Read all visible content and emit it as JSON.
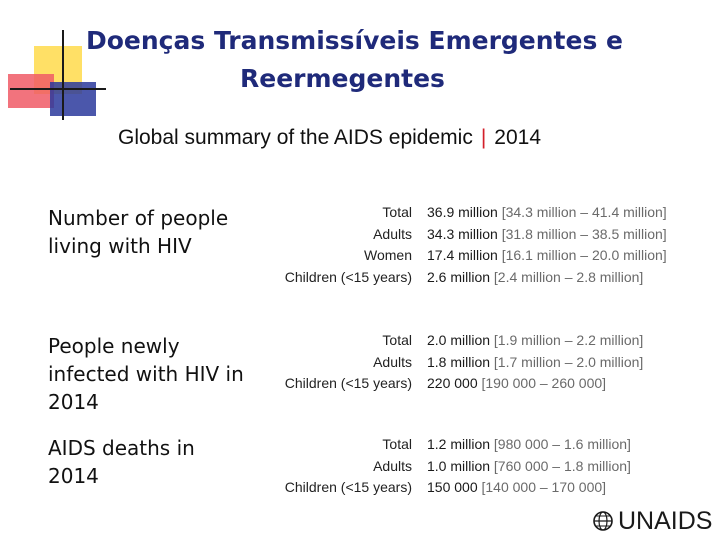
{
  "title": {
    "line1": "Doenças Transmissíveis Emergentes e",
    "line2": "Reermegentes"
  },
  "subtitle": {
    "text": "Global summary of the AIDS epidemic",
    "separator": "|",
    "year": "2014"
  },
  "sections": [
    {
      "label": "Number of people living with HIV",
      "rows": [
        {
          "category": "Total",
          "value": "36.9 million",
          "range": "[34.3 million – 41.4 million]"
        },
        {
          "category": "Adults",
          "value": "34.3 million",
          "range": "[31.8 million – 38.5 million]"
        },
        {
          "category": "Women",
          "value": "17.4 million",
          "range": "[16.1 million – 20.0 million]"
        },
        {
          "category": "Children (<15 years)",
          "value": "2.6 million",
          "range": "[2.4 million – 2.8 million]"
        }
      ]
    },
    {
      "label": "People newly infected with HIV in 2014",
      "rows": [
        {
          "category": "Total",
          "value": "2.0 million",
          "range": "[1.9 million – 2.2 million]"
        },
        {
          "category": "Adults",
          "value": "1.8 million",
          "range": "[1.7 million – 2.0 million]"
        },
        {
          "category": "Children (<15 years)",
          "value": "220 000",
          "range": "[190 000 – 260 000]"
        }
      ]
    },
    {
      "label": "AIDS deaths in 2014",
      "rows": [
        {
          "category": "Total",
          "value": "1.2 million",
          "range": "[980 000 – 1.6 million]"
        },
        {
          "category": "Adults",
          "value": "1.0 million",
          "range": "[760 000 – 1.8 million]"
        },
        {
          "category": "Children (<15 years)",
          "value": "150 000",
          "range": "[140 000 – 170 000]"
        }
      ]
    }
  ],
  "logo": {
    "text": "UNAIDS",
    "icon": "un-globe-icon"
  },
  "colors": {
    "title": "#1f2a7a",
    "separator": "#d31f2a",
    "range_text": "#6a6a6a"
  }
}
